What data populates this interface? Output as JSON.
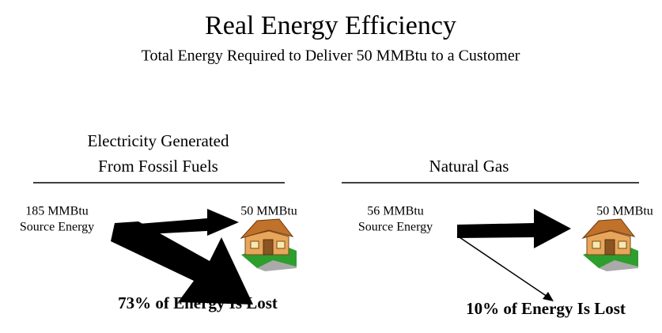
{
  "title": "Real Energy Efficiency",
  "subtitle": "Total Energy Required to Deliver 50 MMBtu to a Customer",
  "panels": [
    {
      "heading": [
        "Electricity Generated",
        "From Fossil Fuels"
      ],
      "source": [
        "185 MMBtu",
        "Source Energy"
      ],
      "delivered": "50 MMBtu",
      "loss": "73% of Energy Is Lost"
    },
    {
      "heading": [
        "Natural Gas"
      ],
      "source": [
        "56 MMBtu",
        "Source Energy"
      ],
      "delivered": "50 MMBtu",
      "loss": "10% of Energy Is Lost"
    }
  ]
}
